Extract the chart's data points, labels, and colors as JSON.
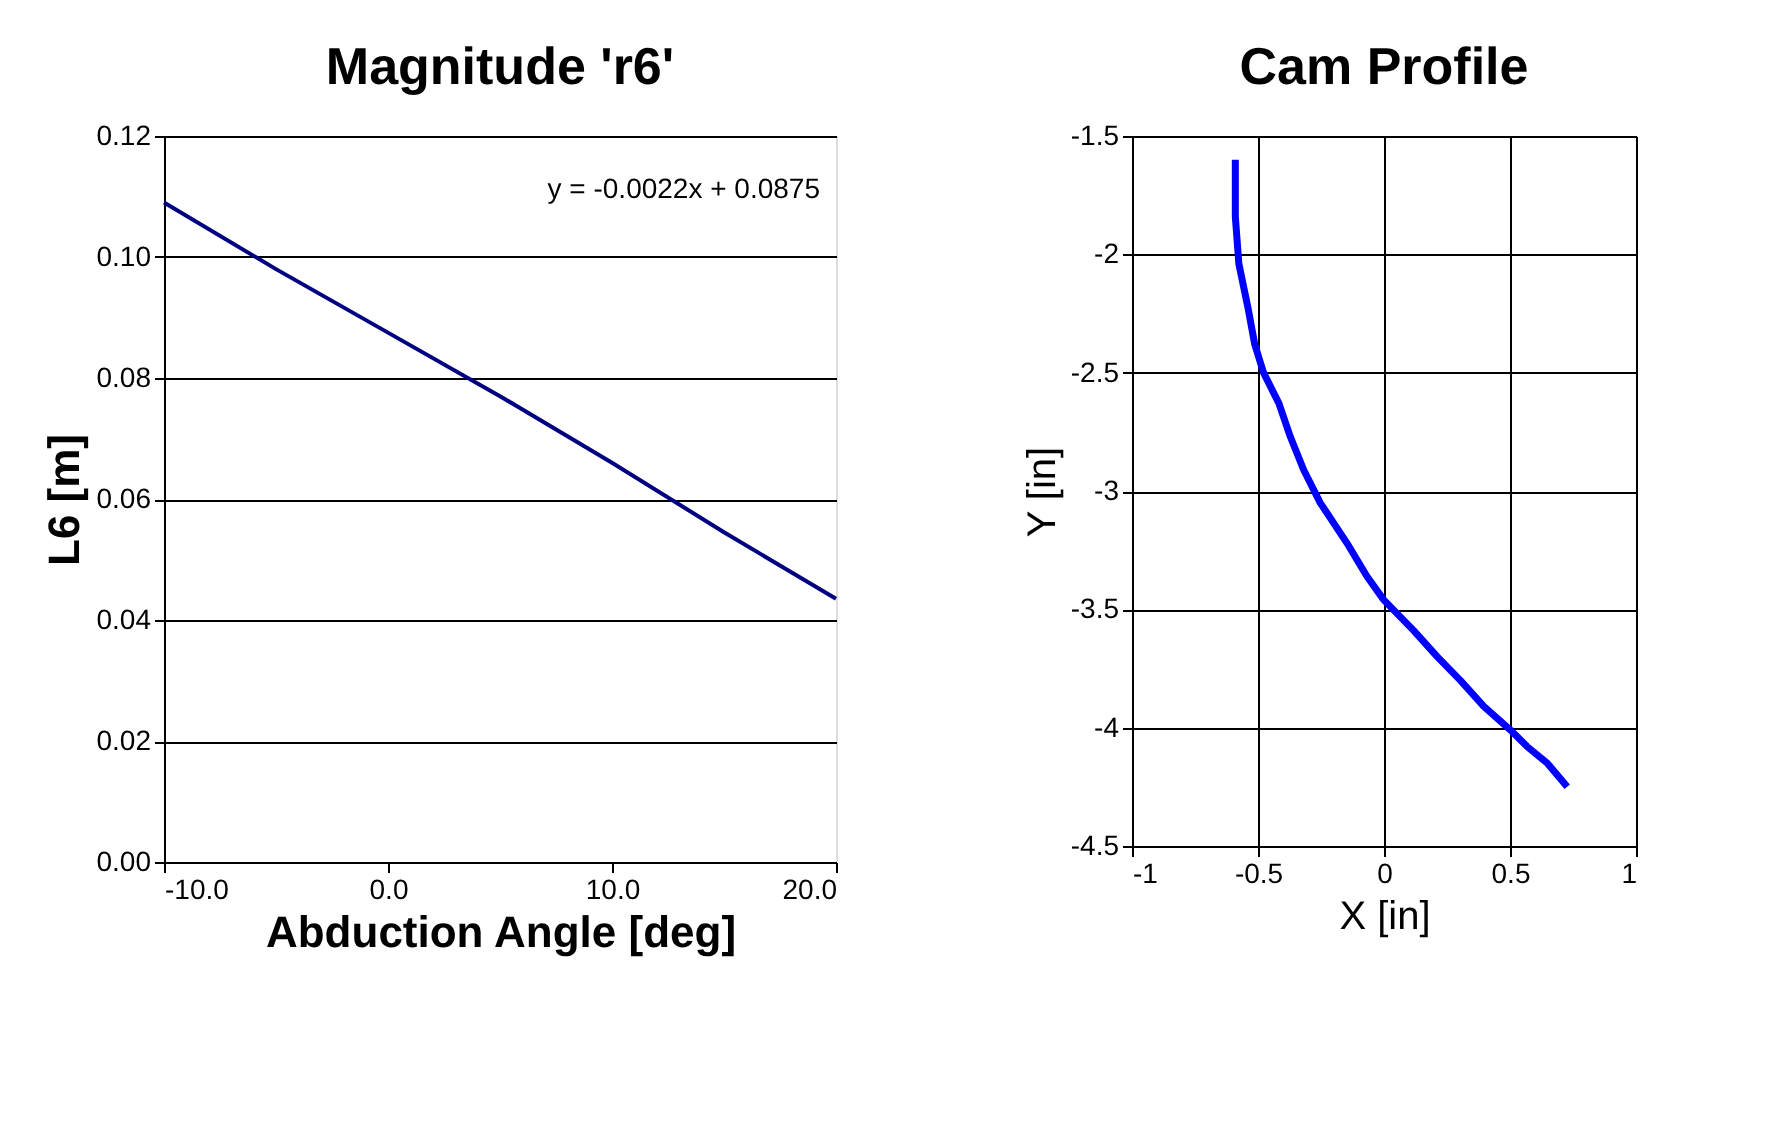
{
  "chart_data": [
    {
      "type": "line",
      "title": "Magnitude 'r6'",
      "xlabel": "Abduction Angle [deg]",
      "ylabel": "L6 [m]",
      "x": [
        -10,
        -5,
        0,
        5,
        10,
        15,
        20
      ],
      "series": [
        {
          "color": "#000080",
          "values": [
            0.109,
            0.098,
            0.0875,
            0.077,
            0.066,
            0.0545,
            0.0435
          ]
        }
      ],
      "xlim": [
        -10,
        20
      ],
      "xticks": [
        {
          "value": -10,
          "label": "-10.0"
        },
        {
          "value": 0,
          "label": "0.0"
        },
        {
          "value": 10,
          "label": "10.0"
        },
        {
          "value": 20,
          "label": "20.0"
        }
      ],
      "ylim": [
        0,
        0.12
      ],
      "yticks": [
        {
          "value": 0,
          "label": "0.00"
        },
        {
          "value": 0.02,
          "label": "0.02"
        },
        {
          "value": 0.04,
          "label": "0.04"
        },
        {
          "value": 0.06,
          "label": "0.06"
        },
        {
          "value": 0.08,
          "label": "0.08"
        },
        {
          "value": 0.1,
          "label": "0.10"
        },
        {
          "value": 0.12,
          "label": "0.12"
        }
      ],
      "grid": "y",
      "marker": "none",
      "line_style": "solid",
      "annotations": [
        "y = -0.0022x + 0.0875"
      ]
    },
    {
      "type": "line",
      "title": "Cam Profile",
      "xlabel": "X [in]",
      "ylabel": "Y [in]",
      "series": [
        {
          "color": "#0000ff",
          "x": [
            -0.59,
            -0.59,
            -0.576,
            -0.539,
            -0.513,
            -0.478,
            -0.417,
            -0.372,
            -0.319,
            -0.253,
            -0.147,
            -0.068,
            -0.001,
            0.118,
            0.211,
            0.303,
            0.396,
            0.502,
            0.568,
            0.648,
            0.727
          ],
          "values": [
            -1.6,
            -1.84,
            -2.04,
            -2.23,
            -2.38,
            -2.5,
            -2.63,
            -2.77,
            -2.91,
            -3.05,
            -3.22,
            -3.36,
            -3.46,
            -3.59,
            -3.7,
            -3.8,
            -3.91,
            -4.01,
            -4.08,
            -4.15,
            -4.25
          ]
        }
      ],
      "xlim": [
        -1,
        1
      ],
      "xticks": [
        -1,
        -0.5,
        0,
        0.5,
        1
      ],
      "ylim": [
        -4.5,
        -1.5
      ],
      "yticks": [
        -4.5,
        -4,
        -3.5,
        -3,
        -2.5,
        -2,
        -1.5
      ],
      "grid": true,
      "marker": "none",
      "line_style": "solid"
    }
  ]
}
